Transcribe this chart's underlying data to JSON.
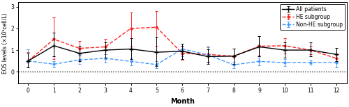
{
  "months": [
    0,
    1,
    2,
    3,
    4,
    5,
    6,
    7,
    8,
    9,
    10,
    11,
    12
  ],
  "all_patients": {
    "y": [
      0.5,
      1.2,
      0.85,
      1.0,
      1.05,
      0.9,
      0.95,
      0.7,
      0.72,
      1.15,
      1.0,
      1.0,
      0.8
    ],
    "yerr_lo": [
      0.3,
      0.5,
      0.35,
      0.35,
      0.45,
      0.65,
      0.35,
      0.35,
      0.35,
      0.45,
      0.35,
      0.3,
      0.3
    ],
    "yerr_hi": [
      0.35,
      0.6,
      0.35,
      0.35,
      0.5,
      0.7,
      0.35,
      0.35,
      0.35,
      0.5,
      0.35,
      0.35,
      0.3
    ],
    "color": "#000000",
    "label": "All patients",
    "linestyle": "-",
    "marker": "+"
  },
  "he_subgroup": {
    "y": [
      0.5,
      1.5,
      1.08,
      1.15,
      2.0,
      2.05,
      0.85,
      0.8,
      0.72,
      1.18,
      1.2,
      1.0,
      0.62
    ],
    "yerr_lo": [
      0.3,
      0.9,
      0.35,
      0.35,
      0.85,
      0.85,
      0.3,
      0.35,
      0.35,
      0.45,
      0.35,
      0.2,
      0.15
    ],
    "yerr_hi": [
      0.4,
      1.0,
      0.35,
      0.35,
      0.75,
      0.75,
      0.35,
      0.35,
      0.35,
      0.45,
      0.35,
      0.2,
      0.15
    ],
    "color": "#FF2020",
    "label": "HE subgroup",
    "linestyle": "--",
    "marker": "."
  },
  "non_he_subgroup": {
    "y": [
      0.5,
      0.35,
      0.55,
      0.62,
      0.48,
      0.33,
      1.05,
      0.78,
      0.32,
      0.48,
      0.42,
      0.42,
      0.42
    ],
    "yerr_lo": [
      0.3,
      0.15,
      0.2,
      0.18,
      0.18,
      0.15,
      0.35,
      0.35,
      0.15,
      0.18,
      0.15,
      0.1,
      0.22
    ],
    "yerr_hi": [
      0.55,
      0.15,
      0.2,
      0.18,
      0.18,
      0.15,
      0.1,
      0.35,
      0.15,
      0.18,
      0.15,
      0.1,
      0.08
    ],
    "color": "#4499FF",
    "label": "Non-HE subgroup",
    "linestyle": "--",
    "marker": "."
  },
  "ylabel": "EOS levels (×10⁹cell/L)",
  "xlabel": "Month",
  "ylim": [
    -0.55,
    3.2
  ],
  "xlim": [
    -0.4,
    12.4
  ],
  "figsize": [
    5.0,
    1.54
  ],
  "dpi": 100
}
